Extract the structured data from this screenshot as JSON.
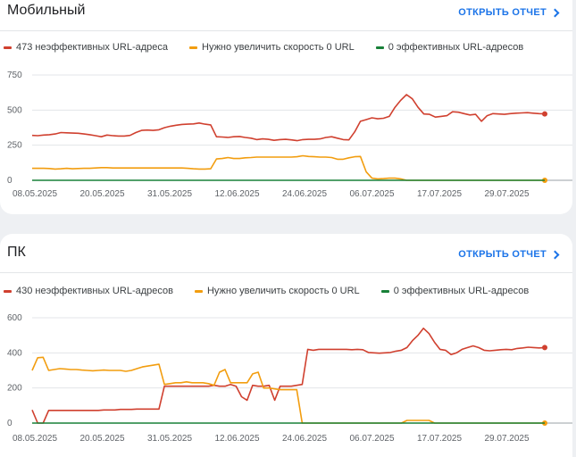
{
  "colors": {
    "red": "#d0402f",
    "orange": "#f29d0f",
    "green": "#188038",
    "link": "#1a73e8"
  },
  "report_link_label": "ОТКРЫТЬ ОТЧЕТ",
  "sections": [
    {
      "title": "Мобильный",
      "legend": [
        "473 неэффективных URL-адреса",
        "Нужно увеличить скорость 0 URL",
        "0 эффективных URL-адресов"
      ]
    },
    {
      "title": "ПК",
      "legend": [
        "430 неэффективных URL-адресов",
        "Нужно увеличить скорость 0 URL",
        "0 эффективных URL-адресов"
      ]
    }
  ],
  "chart_data": [
    {
      "type": "line",
      "title": "Мобильный",
      "ylim": [
        0,
        750
      ],
      "yticks": [
        0,
        250,
        500,
        750
      ],
      "x_tick_labels": [
        "08.05.2025",
        "20.05.2025",
        "31.05.2025",
        "12.06.2025",
        "24.06.2025",
        "06.07.2025",
        "17.07.2025",
        "29.07.2025"
      ],
      "x_range": [
        "08.05.2025",
        "08.08.2025"
      ],
      "series": [
        {
          "name": "473 неэффективных URL-адреса",
          "color": "#d0402f",
          "values": [
            320,
            318,
            322,
            325,
            330,
            340,
            338,
            336,
            335,
            330,
            325,
            318,
            310,
            322,
            318,
            315,
            315,
            320,
            340,
            355,
            358,
            355,
            360,
            375,
            385,
            392,
            398,
            400,
            402,
            408,
            400,
            395,
            310,
            308,
            305,
            310,
            312,
            305,
            300,
            290,
            295,
            292,
            285,
            290,
            292,
            288,
            282,
            290,
            292,
            292,
            295,
            305,
            310,
            300,
            290,
            288,
            345,
            420,
            432,
            445,
            438,
            442,
            455,
            520,
            570,
            610,
            580,
            520,
            472,
            470,
            450,
            455,
            460,
            488,
            485,
            475,
            465,
            470,
            420,
            460,
            475,
            472,
            470,
            475,
            478,
            480,
            482,
            478,
            475,
            473
          ]
        },
        {
          "name": "Нужно увеличить скорость 0 URL",
          "color": "#f29d0f",
          "values": [
            85,
            85,
            85,
            84,
            80,
            82,
            85,
            82,
            84,
            85,
            85,
            88,
            90,
            90,
            88,
            88,
            88,
            88,
            88,
            88,
            88,
            88,
            88,
            88,
            88,
            88,
            88,
            85,
            82,
            80,
            80,
            82,
            152,
            155,
            162,
            155,
            155,
            160,
            162,
            165,
            165,
            165,
            165,
            165,
            165,
            165,
            168,
            175,
            170,
            168,
            165,
            165,
            162,
            150,
            150,
            160,
            168,
            170,
            60,
            15,
            10,
            12,
            15,
            15,
            10,
            0,
            0,
            0,
            0,
            0,
            0,
            0,
            0,
            0,
            0,
            0,
            0,
            0,
            0,
            0,
            0,
            0,
            0,
            0,
            0,
            0,
            0,
            0,
            0,
            0
          ]
        },
        {
          "name": "0 эффективных URL-адресов",
          "color": "#188038",
          "values": [
            0,
            0,
            0,
            0,
            0,
            0,
            0,
            0,
            0,
            0,
            0,
            0,
            0,
            0,
            0,
            0,
            0,
            0,
            0,
            0,
            0,
            0,
            0,
            0,
            0,
            0,
            0,
            0,
            0,
            0,
            0,
            0,
            0,
            0,
            0,
            0,
            0,
            0,
            0,
            0,
            0,
            0,
            0,
            0,
            0,
            0,
            0,
            0,
            0,
            0,
            0,
            0,
            0,
            0,
            0,
            0,
            0,
            0,
            0,
            0,
            0,
            0,
            0,
            0,
            0,
            0,
            0,
            0,
            0,
            0,
            0,
            0,
            0,
            0,
            0,
            0,
            0,
            0,
            0,
            0,
            0,
            0,
            0,
            0,
            0,
            0,
            0,
            0,
            0,
            0
          ]
        }
      ]
    },
    {
      "type": "line",
      "title": "ПК",
      "ylim": [
        0,
        600
      ],
      "yticks": [
        0,
        200,
        400,
        600
      ],
      "x_tick_labels": [
        "08.05.2025",
        "20.05.2025",
        "31.05.2025",
        "12.06.2025",
        "24.06.2025",
        "06.07.2025",
        "17.07.2025",
        "29.07.2025"
      ],
      "x_range": [
        "08.05.2025",
        "08.08.2025"
      ],
      "series": [
        {
          "name": "430 неэффективных URL-адресов",
          "color": "#d0402f",
          "values": [
            75,
            0,
            0,
            72,
            72,
            72,
            72,
            72,
            72,
            72,
            72,
            72,
            72,
            75,
            75,
            75,
            78,
            78,
            78,
            80,
            80,
            80,
            80,
            80,
            210,
            210,
            210,
            210,
            210,
            210,
            210,
            210,
            210,
            215,
            210,
            210,
            220,
            210,
            150,
            130,
            215,
            210,
            210,
            215,
            130,
            210,
            210,
            210,
            215,
            220,
            420,
            415,
            420,
            420,
            420,
            420,
            420,
            420,
            418,
            420,
            418,
            402,
            400,
            398,
            400,
            402,
            410,
            415,
            430,
            470,
            500,
            540,
            510,
            460,
            420,
            415,
            390,
            400,
            420,
            430,
            440,
            430,
            415,
            412,
            415,
            418,
            420,
            418,
            425,
            428,
            432,
            430,
            428,
            430
          ]
        },
        {
          "name": "Нужно увеличить скорость 0 URL",
          "color": "#f29d0f",
          "values": [
            300,
            372,
            375,
            300,
            305,
            310,
            308,
            305,
            305,
            302,
            300,
            298,
            300,
            302,
            300,
            300,
            300,
            295,
            300,
            310,
            320,
            325,
            330,
            335,
            220,
            225,
            230,
            230,
            235,
            230,
            230,
            230,
            225,
            215,
            290,
            305,
            230,
            230,
            230,
            230,
            280,
            290,
            200,
            200,
            195,
            190,
            190,
            190,
            190,
            0,
            0,
            0,
            0,
            0,
            0,
            0,
            0,
            0,
            0,
            0,
            0,
            0,
            0,
            0,
            0,
            0,
            0,
            0,
            15,
            15,
            15,
            15,
            15,
            0,
            0,
            0,
            0,
            0,
            0,
            0,
            0,
            0,
            0,
            0,
            0,
            0,
            0,
            0,
            0,
            0,
            0,
            0,
            0,
            0
          ]
        },
        {
          "name": "0 эффективных URL-адресов",
          "color": "#188038",
          "values": [
            0,
            0,
            0,
            0,
            0,
            0,
            0,
            0,
            0,
            0,
            0,
            0,
            0,
            0,
            0,
            0,
            0,
            0,
            0,
            0,
            0,
            0,
            0,
            0,
            0,
            0,
            0,
            0,
            0,
            0,
            0,
            0,
            0,
            0,
            0,
            0,
            0,
            0,
            0,
            0,
            0,
            0,
            0,
            0,
            0,
            0,
            0,
            0,
            0,
            0,
            0,
            0,
            0,
            0,
            0,
            0,
            0,
            0,
            0,
            0,
            0,
            0,
            0,
            0,
            0,
            0,
            0,
            0,
            0,
            0,
            0,
            0,
            0,
            0,
            0,
            0,
            0,
            0,
            0,
            0,
            0,
            0,
            0,
            0,
            0,
            0,
            0,
            0,
            0,
            0,
            0,
            0,
            0,
            0
          ]
        }
      ]
    }
  ]
}
